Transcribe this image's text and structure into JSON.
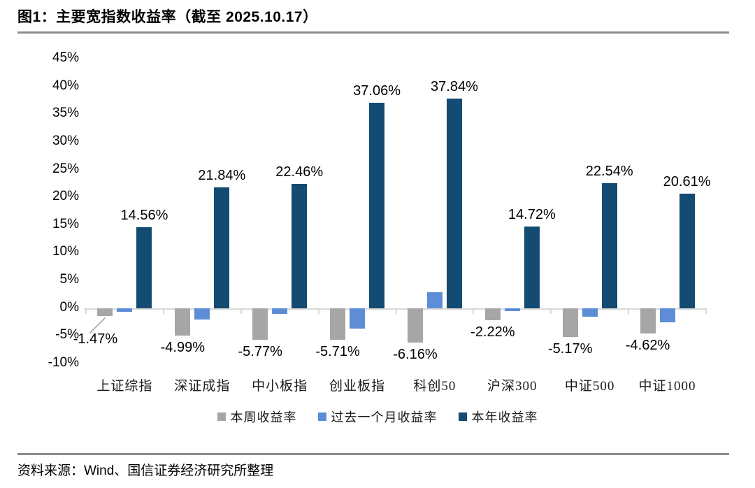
{
  "page": {
    "title": "图1：主要宽指数收益率（截至 2025.10.17）",
    "source": "资料来源：Wind、国信证券经济研究所整理"
  },
  "colors": {
    "week_bar": "#A6A6A6",
    "month_bar": "#5C8DD6",
    "year_bar": "#134B73",
    "axis_line": "#D9D9D9",
    "leader_line": "#A6A6A6",
    "rule": "#8C8C8C"
  },
  "chart_data": {
    "type": "bar",
    "title": "图1：主要宽指数收益率（截至 2025.10.17）",
    "categories": [
      "上证综指",
      "深证成指",
      "中小板指",
      "创业板指",
      "科创50",
      "沪深300",
      "中证500",
      "中证1000"
    ],
    "series": [
      {
        "key": "week",
        "name": "本周收益率",
        "color": "#A6A6A6",
        "values": [
          -1.47,
          -4.99,
          -5.77,
          -5.71,
          -6.16,
          -2.22,
          -5.17,
          -4.62
        ],
        "labels_visible": true,
        "labels": [
          "-1.47%",
          "-4.99%",
          "-5.77%",
          "-5.71%",
          "-6.16%",
          "-2.22%",
          "-5.17%",
          "-4.62%"
        ]
      },
      {
        "key": "month",
        "name": "过去一个月收益率",
        "color": "#5C8DD6",
        "values": [
          -0.65,
          -2.0,
          -1.1,
          -3.7,
          2.9,
          -0.6,
          -1.5,
          -2.6
        ],
        "labels_visible": false,
        "labels": []
      },
      {
        "key": "year",
        "name": "本年收益率",
        "color": "#134B73",
        "values": [
          14.56,
          21.84,
          22.46,
          37.06,
          37.84,
          14.72,
          22.54,
          20.61
        ],
        "labels_visible": true,
        "labels": [
          "14.56%",
          "21.84%",
          "22.46%",
          "37.06%",
          "37.84%",
          "14.72%",
          "22.54%",
          "20.61%"
        ]
      }
    ],
    "y_axis": {
      "tick_labels": [
        "45%",
        "40%",
        "35%",
        "30%",
        "25%",
        "20%",
        "15%",
        "10%",
        "5%",
        "0%",
        "-5%",
        "-10%"
      ],
      "min": -10,
      "max": 45,
      "step": 5
    },
    "xlabel": "",
    "ylabel": "",
    "legend_position": "bottom",
    "grid": false,
    "first_week_label_has_leader_line": true
  }
}
